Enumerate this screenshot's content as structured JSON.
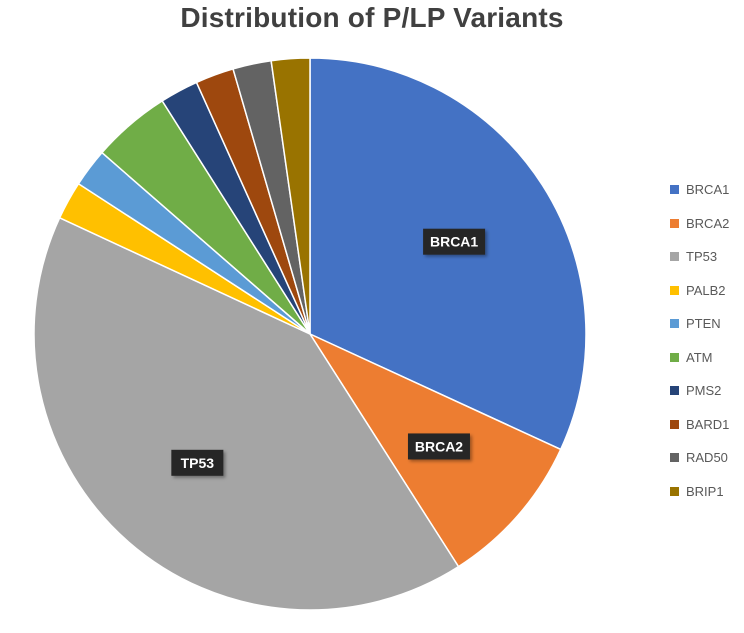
{
  "chart_data": {
    "type": "pie",
    "title": "Distribution of P/LP Variants",
    "legend_position": "right",
    "slices": [
      {
        "label": "BRCA1",
        "value": 32.6,
        "color": "#4472C4",
        "data_label": "BRCA1"
      },
      {
        "label": "BRCA2",
        "value": 9.3,
        "color": "#ED7D31",
        "data_label": "BRCA2"
      },
      {
        "label": "TP53",
        "value": 41.9,
        "color": "#A5A5A5",
        "data_label": "TP53"
      },
      {
        "label": "PALB2",
        "value": 2.3,
        "color": "#FFC000",
        "data_label": ""
      },
      {
        "label": "PTEN",
        "value": 2.3,
        "color": "#5B9BD5",
        "data_label": ""
      },
      {
        "label": "ATM",
        "value": 4.7,
        "color": "#70AD47",
        "data_label": ""
      },
      {
        "label": "PMS2",
        "value": 2.3,
        "color": "#264478",
        "data_label": ""
      },
      {
        "label": "BARD1",
        "value": 2.3,
        "color": "#9E480E",
        "data_label": ""
      },
      {
        "label": "RAD50",
        "value": 2.3,
        "color": "#636363",
        "data_label": ""
      },
      {
        "label": "BRIP1",
        "value": 2.3,
        "color": "#997300",
        "data_label": ""
      }
    ]
  }
}
